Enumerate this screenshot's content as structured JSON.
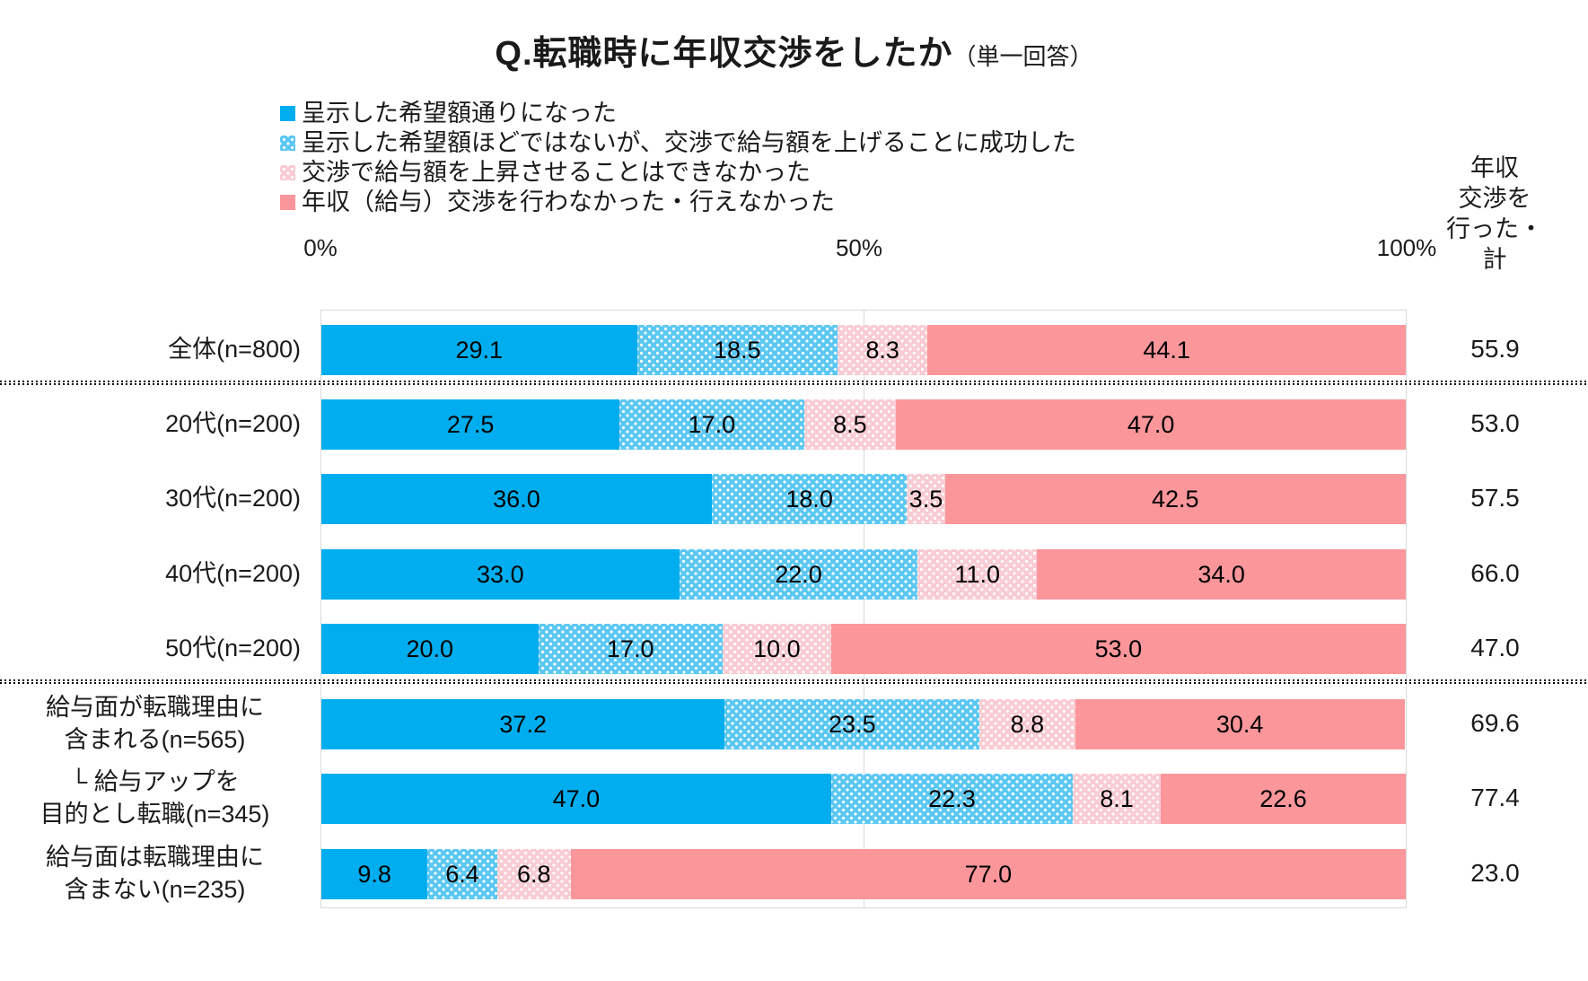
{
  "title": {
    "q": "Q.転職時に年収交渉をしたか",
    "note": "（単一回答）"
  },
  "chart_data": {
    "type": "bar",
    "stacked": true,
    "orientation": "horizontal",
    "title": "Q.転職時に年収交渉をしたか（単一回答）",
    "xlim": [
      0,
      100
    ],
    "x_ticks": [
      "0%",
      "50%",
      "100%"
    ],
    "grid": "vertical-at-0-50-100",
    "legend_position": "top-left",
    "categories": [
      "全体(n=800)",
      "20代(n=200)",
      "30代(n=200)",
      "40代(n=200)",
      "50代(n=200)",
      "給与面が転職理由に\n含まれる(n=565)",
      "└ 給与アップを\n目的とし転職(n=345)",
      "給与面は転職理由に\n含まない(n=235)"
    ],
    "series": [
      {
        "name": "呈示した希望額通りになった",
        "color": "#00AEEF",
        "pattern": "solid",
        "values": [
          29.1,
          27.5,
          36.0,
          33.0,
          20.0,
          37.2,
          47.0,
          9.8
        ]
      },
      {
        "name": "呈示した希望額ほどではないが、交渉で給与額を上げることに成功した",
        "color": "#5BC8F3",
        "pattern": "white-dots",
        "values": [
          18.5,
          17.0,
          18.0,
          22.0,
          17.0,
          23.5,
          22.3,
          6.4
        ]
      },
      {
        "name": "交渉で給与額を上昇させることはできなかった",
        "color": "#F9CBD2",
        "pattern": "white-dots",
        "values": [
          8.3,
          8.5,
          3.5,
          11.0,
          10.0,
          8.8,
          8.1,
          6.8
        ]
      },
      {
        "name": "年収（給与）交渉を行わなかった・行えなかった",
        "color": "#FB969B",
        "pattern": "solid",
        "values": [
          44.1,
          47.0,
          42.5,
          34.0,
          53.0,
          30.4,
          22.6,
          77.0
        ]
      }
    ],
    "totals": {
      "header": "年収\n交渉を\n行った・\n計",
      "values": [
        55.9,
        53.0,
        57.5,
        66.0,
        47.0,
        69.6,
        77.4,
        23.0
      ]
    },
    "group_separators_after": [
      0,
      4
    ],
    "colors": {
      "axis_line": "#d9d9d9",
      "text": "#1a1a1a",
      "separator": "#000000"
    }
  }
}
